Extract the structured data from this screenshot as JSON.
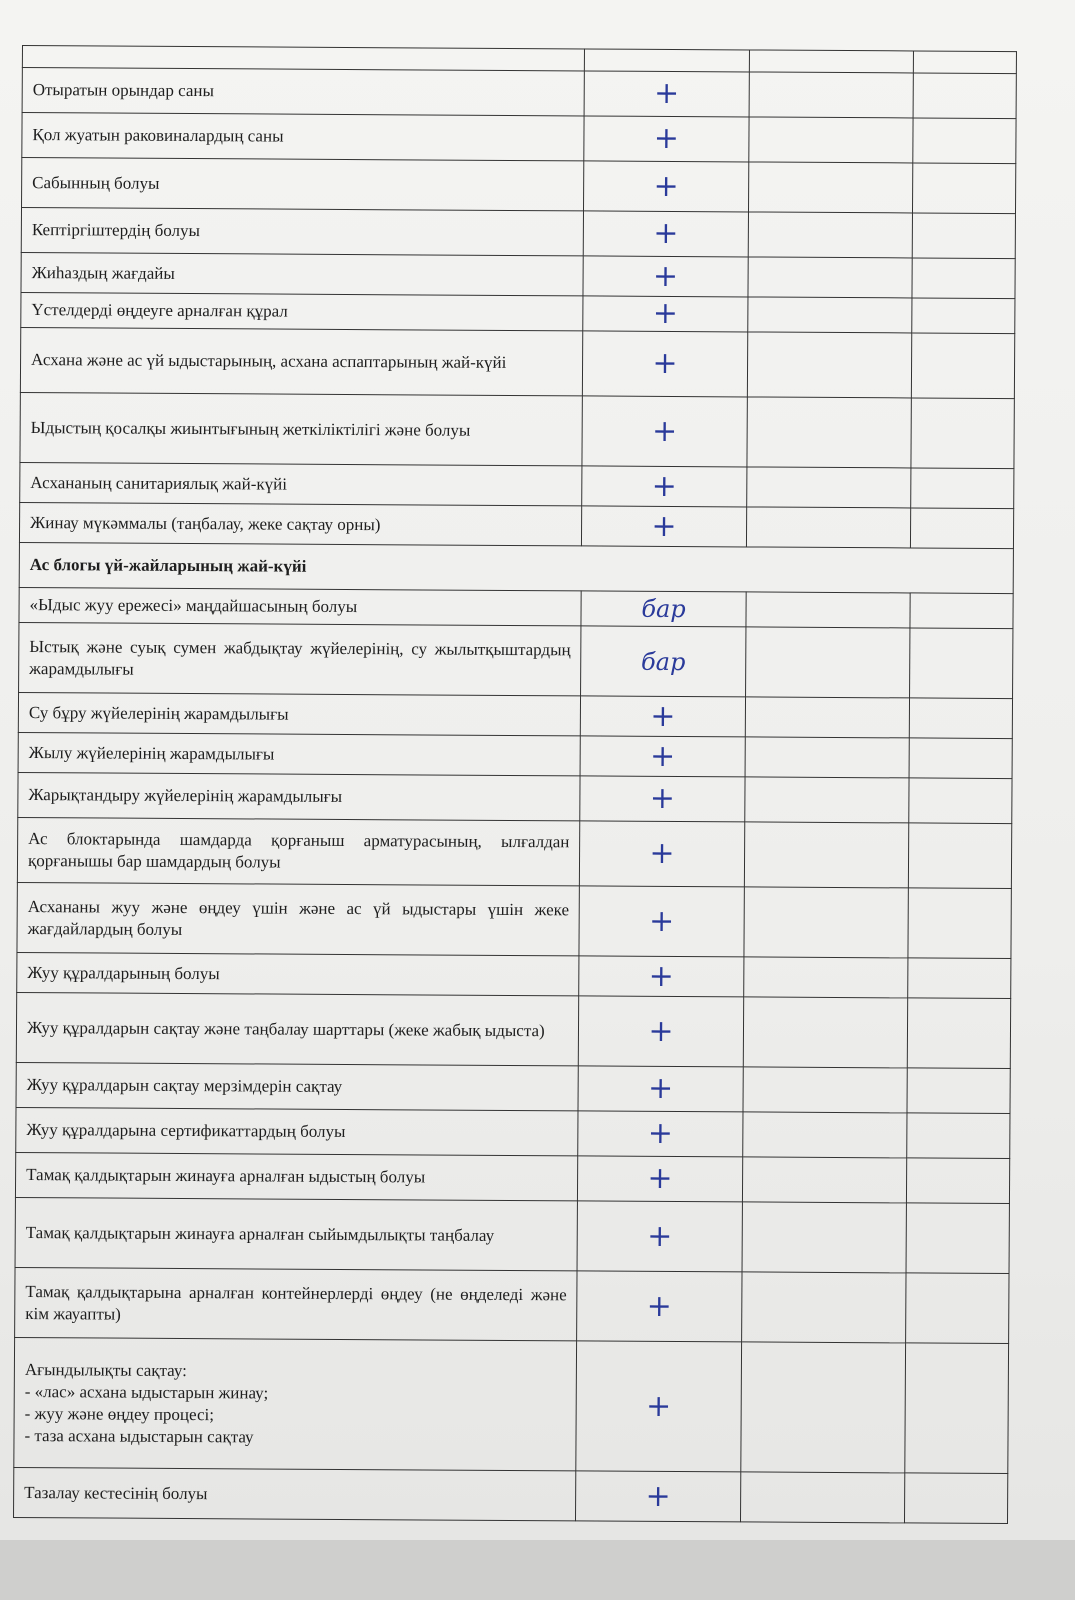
{
  "rows": [
    {
      "text": "",
      "mark": ""
    },
    {
      "text": "Отыратын орындар саны",
      "mark": "+"
    },
    {
      "text": "Қол жуатын раковиналардың саны",
      "mark": "+"
    },
    {
      "text": "Сабынның болуы",
      "mark": "+"
    },
    {
      "text": "Кептіргіштердің болуы",
      "mark": "+"
    },
    {
      "text": "Жиһаздың жағдайы",
      "mark": "+"
    },
    {
      "text": "Үстелдерді өңдеуге арналған құрал",
      "mark": "+"
    },
    {
      "text": "Асхана және ас үй ыдыстарының, асхана аспаптарының жай-күйі",
      "mark": "+"
    },
    {
      "text": "Ыдыстың қосалқы жиынтығының жеткіліктілігі және болуы",
      "mark": "+"
    },
    {
      "text": "Асхананың санитариялық жай-күйі",
      "mark": "+"
    },
    {
      "text": "Жинау мүкәммалы (таңбалау, жеке сақтау орны)",
      "mark": "+"
    },
    {
      "text": "Ас блогы үй-жайларының жай-күйі",
      "mark": "",
      "section": true
    },
    {
      "text": "«Ыдыс жуу ережесі» маңдайшасының болуы",
      "mark": "бар"
    },
    {
      "text": "Ыстық және суық сумен жабдықтау жүйелерінің, су жылытқыштардың жарамдылығы",
      "mark": "бар"
    },
    {
      "text": "Су бұру жүйелерінің жарамдылығы",
      "mark": "+"
    },
    {
      "text": "Жылу жүйелерінің жарамдылығы",
      "mark": "+"
    },
    {
      "text": "Жарықтандыру жүйелерінің жарамдылығы",
      "mark": "+"
    },
    {
      "text": "Ас блоктарында шамдарда қорғаныш арматурасының, ылғалдан қорғанышы бар шамдардың болуы",
      "mark": "+"
    },
    {
      "text": "Асхананы жуу және өңдеу үшін және ас үй ыдыстары үшін жеке жағдайлардың болуы",
      "mark": "+"
    },
    {
      "text": "Жуу құралдарының болуы",
      "mark": "+"
    },
    {
      "text": "Жуу құралдарын сақтау және таңбалау шарттары (жеке жабық ыдыста)",
      "mark": "+"
    },
    {
      "text": "Жуу құралдарын сақтау мерзімдерін сақтау",
      "mark": "+"
    },
    {
      "text": "Жуу құралдарына сертификаттардың болуы",
      "mark": "+"
    },
    {
      "text": "Тамақ қалдықтарын жинауға арналған ыдыстың болуы",
      "mark": "+"
    },
    {
      "text": "Тамақ қалдықтарын жинауға арналған сыйымдылықты таңбалау",
      "mark": "+"
    },
    {
      "text": "Тамақ қалдықтарына арналған контейнерлерді өңдеу (не өңделеді және кім жауапты)",
      "mark": "+"
    },
    {
      "text": "Ағындылықты сақтау:\n- «лас» асхана ыдыстарын жинау;\n- жуу және өңдеу процесі;\n- таза асхана ыдыстарын сақтау",
      "mark": "+"
    },
    {
      "text": "Тазалау кестесінің болуы",
      "mark": "+"
    }
  ],
  "colors": {
    "ink": "#2a3a9a",
    "text": "#1e1e1e"
  }
}
